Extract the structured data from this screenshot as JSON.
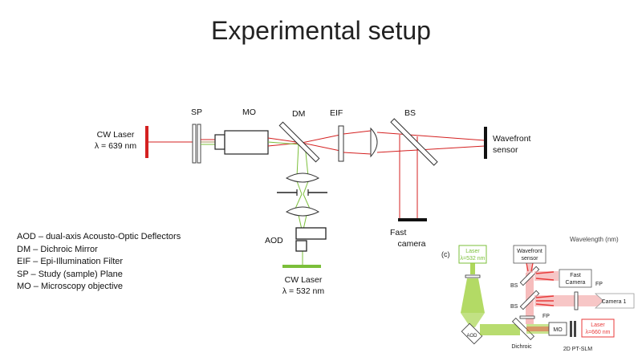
{
  "title": "Experimental setup",
  "labels": {
    "sp": "SP",
    "mo": "MO",
    "dm": "DM",
    "eif": "EIF",
    "bs": "BS",
    "cw_laser_red_line1": "CW Laser",
    "cw_laser_red_line2": "λ = 639 nm",
    "wavefront_line1": "Wavefront",
    "wavefront_line2": "sensor",
    "fast_camera_line1": "Fast",
    "fast_camera_line2": "camera",
    "aod": "AOD",
    "cw_laser_green_line1": "CW Laser",
    "cw_laser_green_line2": "λ = 532 nm"
  },
  "legend": [
    "AOD – dual-axis Acousto-Optic Deflectors",
    "DM – Dichroic Mirror",
    "EIF – Epi-Illumination Filter",
    "SP – Study (sample) Plane",
    "MO – Microscopy objective"
  ],
  "inset": {
    "panel_label": "(c)",
    "header_fragment": "Wavelength (nm)",
    "laser_green_line1": "Laser",
    "laser_green_line2": "λ=532 nm",
    "wavefront_line1": "Wavefront",
    "wavefront_line2": "sensor",
    "fast_camera_line1": "Fast",
    "fast_camera_line2": "Camera",
    "camera1": "Camera 1",
    "bs1": "BS",
    "bs2": "BS",
    "fp1": "FP",
    "fp2": "FP",
    "aod": "AOD",
    "mo": "MO",
    "laser_red_line1": "Laser",
    "laser_red_line2": "λ=660 nm",
    "dichroic": "Dichroic",
    "slm": "2D PT-SLM"
  },
  "colors": {
    "red_beam": "#d42020",
    "green_beam": "#7bbf3a",
    "optic_gray": "#555555",
    "inset_red": "#e83a3a",
    "inset_green": "#9acd32"
  }
}
